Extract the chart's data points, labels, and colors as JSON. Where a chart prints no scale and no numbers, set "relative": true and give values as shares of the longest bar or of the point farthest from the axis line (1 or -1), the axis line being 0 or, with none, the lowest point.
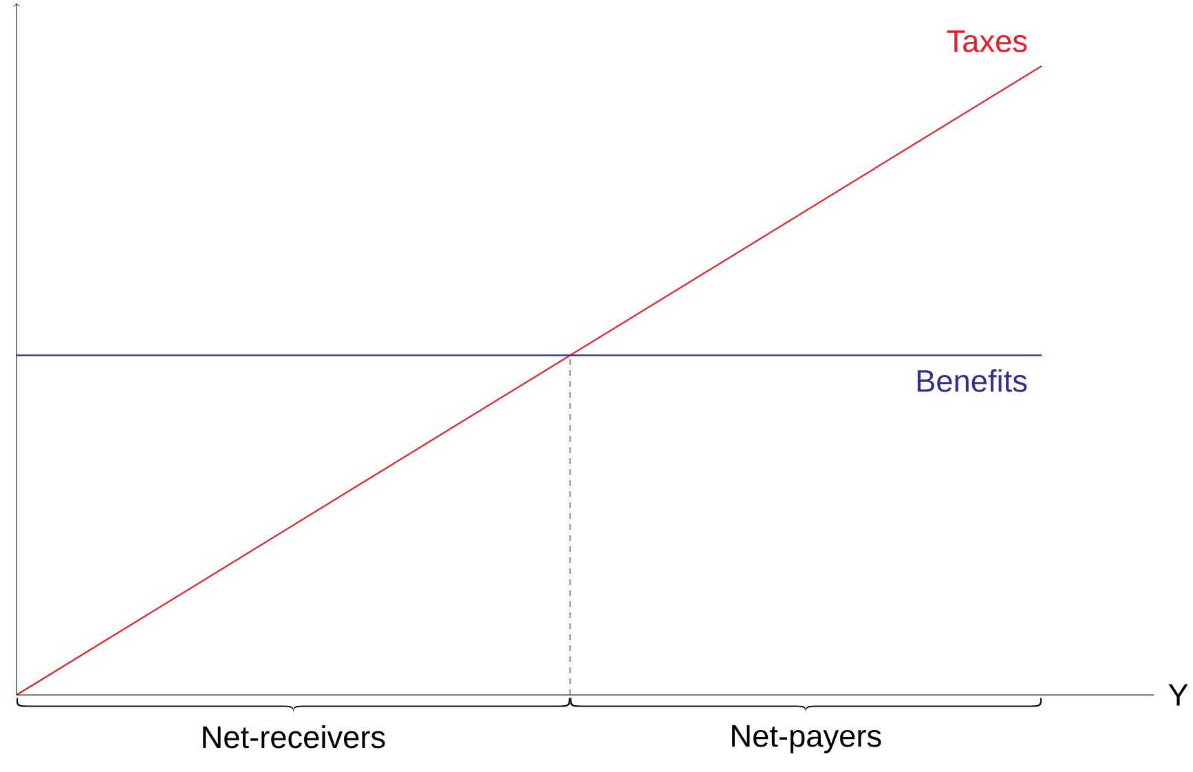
{
  "chart_data": {
    "type": "line",
    "relative": true,
    "xlabel": "Y",
    "categories": [
      null,
      null
    ],
    "series": [
      {
        "name": "Taxes",
        "color": "#ed1c24",
        "values": [
          0,
          1
        ]
      },
      {
        "name": "Benefits",
        "color": "#2e3192",
        "values": [
          0.54,
          0.54
        ]
      }
    ],
    "annotations": [
      "Net-receivers",
      "Net-payers"
    ],
    "legend": false,
    "marker": "none",
    "line_style": "solid"
  }
}
